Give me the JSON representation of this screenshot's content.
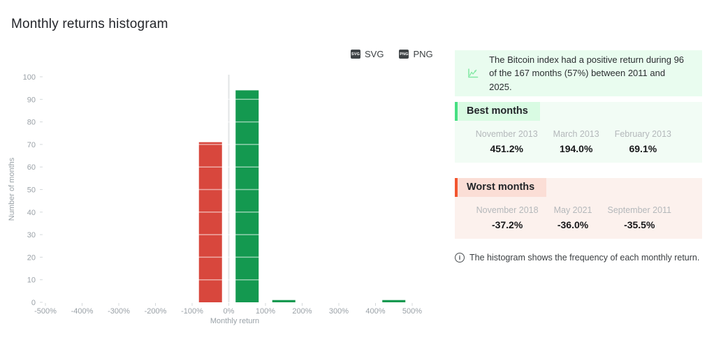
{
  "page": {
    "title": "Monthly returns histogram"
  },
  "toolbar": {
    "svg_label": "SVG",
    "png_label": "PNG",
    "svg_icon_text": "SVG",
    "png_icon_text": "PNG"
  },
  "chart_data": {
    "type": "bar",
    "title": "Monthly returns histogram",
    "xlabel": "Monthly return",
    "ylabel": "Number of months",
    "ylim": [
      0,
      100
    ],
    "y_ticks": [
      0,
      10,
      20,
      30,
      40,
      50,
      60,
      70,
      80,
      90,
      100
    ],
    "x_tick_values": [
      -500,
      -400,
      -300,
      -200,
      -100,
      0,
      100,
      200,
      300,
      400,
      500
    ],
    "x_tick_labels": [
      "-500%",
      "-400%",
      "-300%",
      "-200%",
      "-100%",
      "0%",
      "100%",
      "200%",
      "300%",
      "400%",
      "500%"
    ],
    "bin_width_percent": 100,
    "bins": [
      {
        "range_label": "-100% to 0%",
        "center": -50,
        "count": 71
      },
      {
        "range_label": "0% to 100%",
        "center": 50,
        "count": 94
      },
      {
        "range_label": "100% to 200%",
        "center": 150,
        "count": 1
      },
      {
        "range_label": "400% to 500%",
        "center": 450,
        "count": 1
      }
    ],
    "colors": {
      "negative": "#d8473d",
      "positive": "#149950",
      "zero_line": "#e2e4e6",
      "grid_over_bars": "rgba(255,255,255,0.55)"
    },
    "grid": "white lines over bars only",
    "legend": "none"
  },
  "insight": {
    "icon": "line-chart-icon",
    "icon_color": "#82e8a3",
    "text": "The Bitcoin index had a positive return during 96 of the 167 months (57%) between 2011 and 2025."
  },
  "best_months": {
    "title": "Best months",
    "accent_color": "#46df82",
    "items": [
      {
        "label": "November 2013",
        "value": "451.2%"
      },
      {
        "label": "March 2013",
        "value": "194.0%"
      },
      {
        "label": "February 2013",
        "value": "69.1%"
      }
    ]
  },
  "worst_months": {
    "title": "Worst months",
    "accent_color": "#f2552f",
    "items": [
      {
        "label": "November 2018",
        "value": "-37.2%"
      },
      {
        "label": "May 2021",
        "value": "-36.0%"
      },
      {
        "label": "September 2011",
        "value": "-35.5%"
      }
    ]
  },
  "footnote": {
    "icon": "info-icon",
    "text": "The histogram shows the frequency of each monthly return."
  }
}
